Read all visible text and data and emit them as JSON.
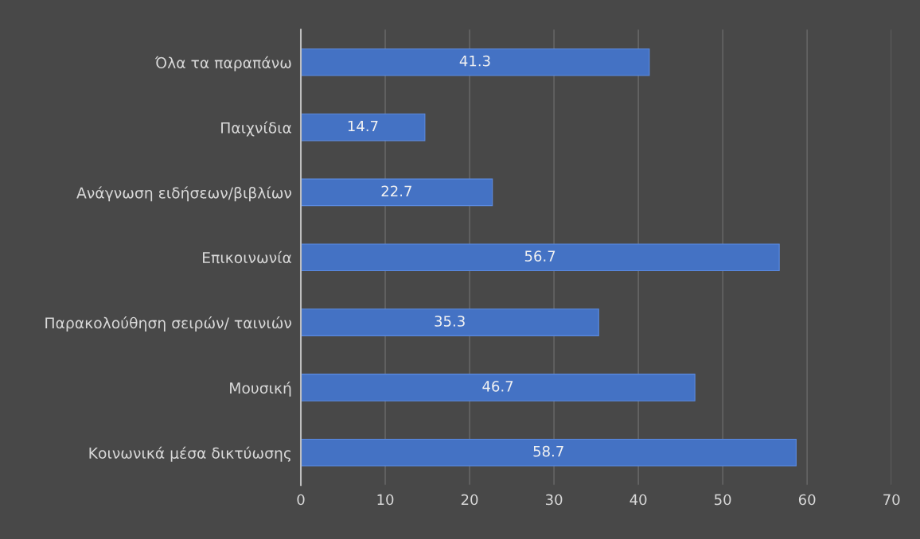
{
  "chart_data": {
    "type": "bar",
    "orientation": "horizontal",
    "categories": [
      "Όλα τα παραπάνω",
      "Παιχνίδια",
      "Ανάγνωση ειδήσεων/βιβλίων",
      "Επικοινωνία",
      "Παρακολούθηση σειρών/ ταινιών",
      "Μουσική",
      "Κοινωνικά μέσα δικτύωσης"
    ],
    "values": [
      41.3,
      14.7,
      22.7,
      56.7,
      35.3,
      46.7,
      58.7
    ],
    "color": "#4472c4",
    "xlim": [
      0,
      70
    ],
    "xticks": [
      0,
      10,
      20,
      30,
      40,
      50,
      60,
      70
    ],
    "grid": "x",
    "legend": false,
    "data_labels": true
  }
}
